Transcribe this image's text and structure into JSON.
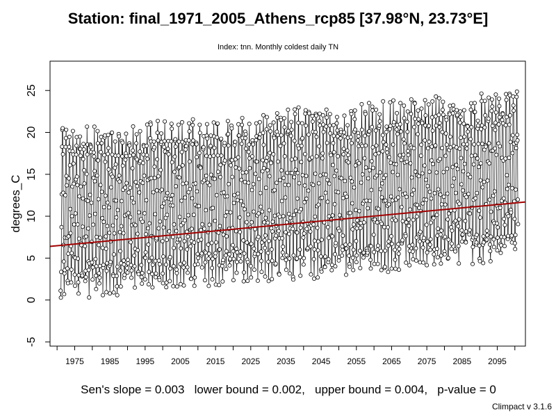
{
  "chart_data": {
    "type": "line",
    "title": "Station: final_1971_2005_Athens_rcp85 [37.98°N, 23.73°E]",
    "subtitle": "Index: tnn. Monthly coldest daily TN",
    "xlabel": "",
    "ylabel": "degrees_C",
    "xlim": [
      1968,
      2103
    ],
    "ylim": [
      -5.5,
      28.5
    ],
    "x_ticks": [
      "1975",
      "1985",
      "1995",
      "2005",
      "2015",
      "2025",
      "2035",
      "2045",
      "2055",
      "2065",
      "2075",
      "2085",
      "2095"
    ],
    "y_ticks": [
      "-5",
      "0",
      "5",
      "10",
      "15",
      "20",
      "25"
    ],
    "series_start": 1971,
    "series_end": 2100,
    "points_per_year": 12,
    "seasonal_winter_low": 1.8,
    "seasonal_summer_high": 18.8,
    "trend_line": {
      "x": [
        1968,
        2103
      ],
      "y": [
        6.4,
        11.7
      ],
      "color": "#a00000"
    },
    "grid": false,
    "legend": "none"
  },
  "stats": {
    "text": "Sen's slope = 0.003   lower bound = 0.002,   upper bound = 0.004,   p-value = 0"
  },
  "version": "Climpact v 3.1.6"
}
